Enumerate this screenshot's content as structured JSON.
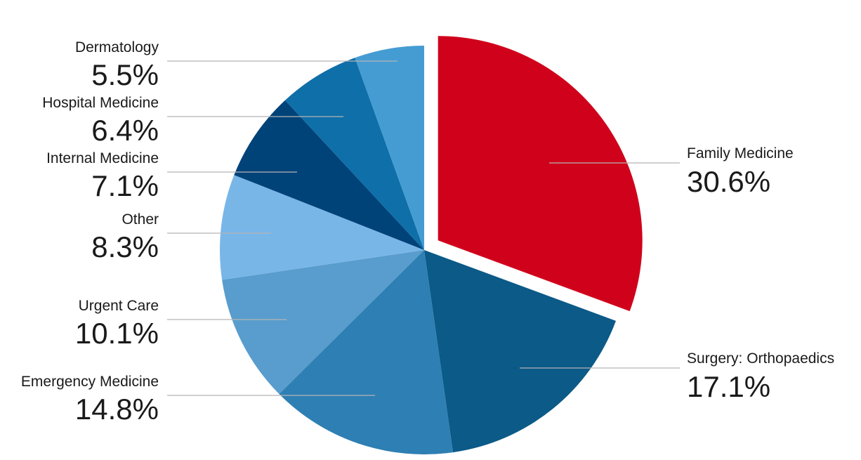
{
  "chart_data": {
    "type": "pie",
    "start_angle_deg": 0,
    "direction": "clockwise",
    "exploded_slice": "Family Medicine",
    "slices": [
      {
        "label": "Family Medicine",
        "value": 30.6,
        "display": "30.6%",
        "color": "#d0021b",
        "side": "right"
      },
      {
        "label": "Surgery: Orthopaedics",
        "value": 17.1,
        "display": "17.1%",
        "color": "#0b5a87",
        "side": "right"
      },
      {
        "label": "Emergency Medicine",
        "value": 14.8,
        "display": "14.8%",
        "color": "#2e7fb3",
        "side": "left"
      },
      {
        "label": "Urgent Care",
        "value": 10.1,
        "display": "10.1%",
        "color": "#589dcd",
        "side": "left"
      },
      {
        "label": "Other",
        "value": 8.3,
        "display": "8.3%",
        "color": "#79b6e8",
        "side": "left"
      },
      {
        "label": "Internal Medicine",
        "value": 7.1,
        "display": "7.1%",
        "color": "#004379",
        "side": "left"
      },
      {
        "label": "Hospital Medicine",
        "value": 6.4,
        "display": "6.4%",
        "color": "#0f6fa8",
        "side": "left"
      },
      {
        "label": "Dermatology",
        "value": 5.5,
        "display": "5.5%",
        "color": "#459cd3",
        "side": "left"
      }
    ]
  }
}
